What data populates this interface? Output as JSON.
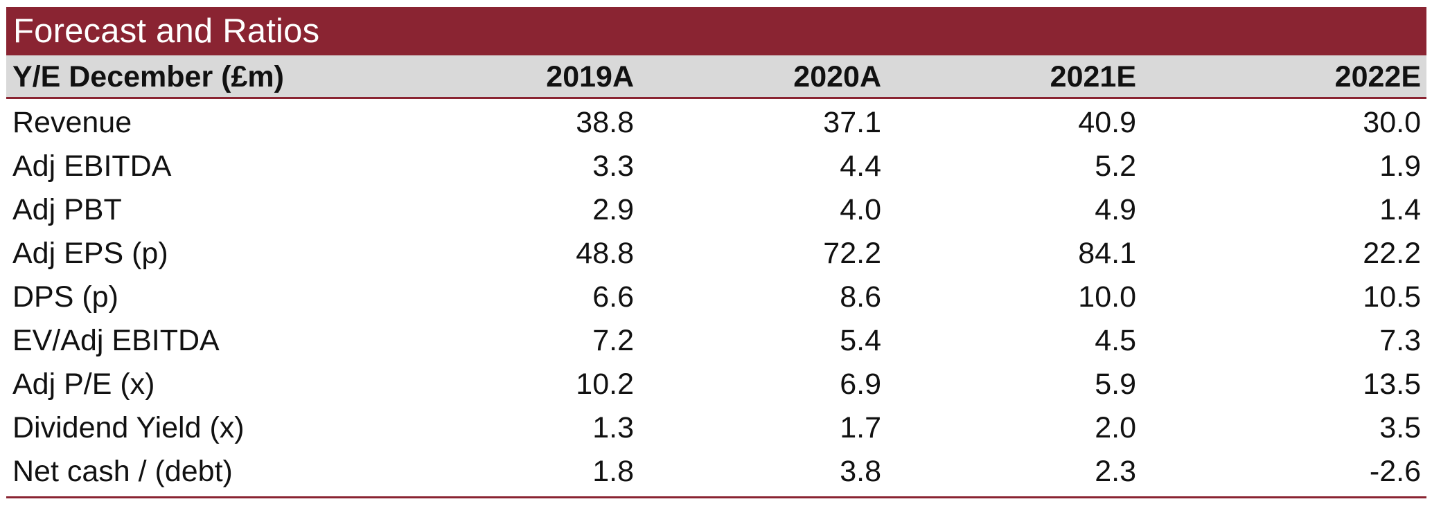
{
  "title": "Forecast and Ratios",
  "header": {
    "label": "Y/E December (£m)",
    "columns": [
      "2019A",
      "2020A",
      "2021E",
      "2022E"
    ]
  },
  "rows": [
    {
      "label": "Revenue",
      "values": [
        "38.8",
        "37.1",
        "40.9",
        "30.0"
      ]
    },
    {
      "label": "Adj EBITDA",
      "values": [
        "3.3",
        "4.4",
        "5.2",
        "1.9"
      ]
    },
    {
      "label": "Adj PBT",
      "values": [
        "2.9",
        "4.0",
        "4.9",
        "1.4"
      ]
    },
    {
      "label": "Adj EPS (p)",
      "values": [
        "48.8",
        "72.2",
        "84.1",
        "22.2"
      ]
    },
    {
      "label": "DPS (p)",
      "values": [
        "6.6",
        "8.6",
        "10.0",
        "10.5"
      ]
    },
    {
      "label": "EV/Adj EBITDA",
      "values": [
        "7.2",
        "5.4",
        "4.5",
        "7.3"
      ]
    },
    {
      "label": "Adj P/E (x)",
      "values": [
        "10.2",
        "6.9",
        "5.9",
        "13.5"
      ]
    },
    {
      "label": "Dividend Yield (x)",
      "values": [
        "1.3",
        "1.7",
        "2.0",
        "3.5"
      ]
    },
    {
      "label": "Net cash / (debt)",
      "values": [
        "1.8",
        "3.8",
        "2.3",
        "-2.6"
      ]
    }
  ],
  "colors": {
    "accent": "#8a2432",
    "header_bg": "#d9d9d9"
  }
}
